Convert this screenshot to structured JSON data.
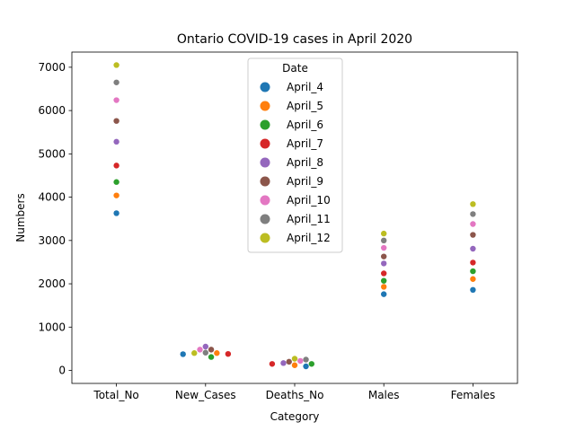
{
  "chart_data": {
    "type": "scatter",
    "title": "Ontario COVID-19 cases in April 2020",
    "xlabel": "Category",
    "ylabel": "Numbers",
    "categories": [
      "Total_No",
      "New_Cases",
      "Deaths_No",
      "Males",
      "Females"
    ],
    "ylim": [
      -300,
      7350
    ],
    "yticks": [
      0,
      1000,
      2000,
      3000,
      4000,
      5000,
      6000,
      7000
    ],
    "grid": false,
    "legend": {
      "title": "Date",
      "placement": "top-center"
    },
    "series": [
      {
        "name": "April_4",
        "color": "#1f77b4",
        "values": [
          3630,
          375,
          94,
          1760,
          1860
        ]
      },
      {
        "name": "April_5",
        "color": "#ff7f0e",
        "values": [
          4040,
          400,
          120,
          1930,
          2110
        ]
      },
      {
        "name": "April_6",
        "color": "#2ca02c",
        "values": [
          4350,
          310,
          150,
          2070,
          2290
        ]
      },
      {
        "name": "April_7",
        "color": "#d62728",
        "values": [
          4730,
          380,
          150,
          2240,
          2490
        ]
      },
      {
        "name": "April_8",
        "color": "#9467bd",
        "values": [
          5280,
          550,
          170,
          2470,
          2810
        ]
      },
      {
        "name": "April_9",
        "color": "#8c564b",
        "values": [
          5760,
          480,
          200,
          2630,
          3130
        ]
      },
      {
        "name": "April_10",
        "color": "#e377c2",
        "values": [
          6240,
          480,
          220,
          2830,
          3380
        ]
      },
      {
        "name": "April_11",
        "color": "#7f7f7f",
        "values": [
          6650,
          410,
          250,
          3000,
          3610
        ]
      },
      {
        "name": "April_12",
        "color": "#bcbd22",
        "values": [
          7050,
          400,
          270,
          3160,
          3840
        ]
      }
    ]
  }
}
